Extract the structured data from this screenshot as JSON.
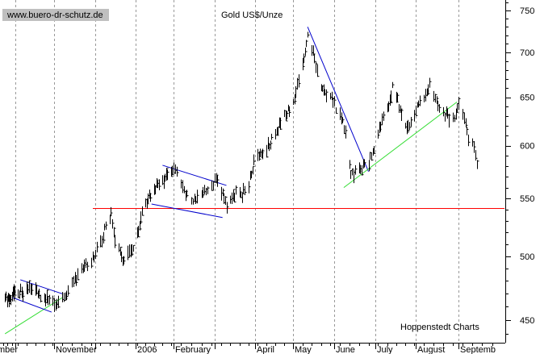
{
  "chart_data": {
    "type": "ohlc",
    "title": "Gold US$/Unze",
    "watermark": "www.buero-dr-schutz.de",
    "source": "Hoppenstedt Charts",
    "y_scale": "log",
    "ylim": [
      440,
      760
    ],
    "y_ticks": [
      450,
      500,
      550,
      600,
      650,
      700,
      750
    ],
    "x_labels": [
      "mber",
      "November",
      "2006",
      "February",
      "April",
      "May",
      "June",
      "July",
      "August",
      "Septemb"
    ],
    "grid": true,
    "colors": {
      "price": "#000000",
      "horizontal_line": "#ff0000",
      "support_line": "#33dd33",
      "channel_line": "#0000cc",
      "grid": "#999999",
      "watermark_bg": "#bfbfbf"
    },
    "horizontal_line": 541,
    "trend_lines": [
      {
        "kind": "support",
        "from": {
          "date": "2005-09-15",
          "price": 440
        },
        "to": {
          "date": "2005-11-07",
          "price": 467
        }
      },
      {
        "kind": "channel",
        "from": {
          "date": "2005-10-05",
          "price": 481
        },
        "to": {
          "date": "2005-11-07",
          "price": 470
        }
      },
      {
        "kind": "channel",
        "from": {
          "date": "2005-09-27",
          "price": 467
        },
        "to": {
          "date": "2005-10-30",
          "price": 456
        }
      },
      {
        "kind": "channel",
        "from": {
          "date": "2006-01-23",
          "price": 581
        },
        "to": {
          "date": "2006-03-10",
          "price": 562
        }
      },
      {
        "kind": "channel",
        "from": {
          "date": "2006-01-14",
          "price": 545
        },
        "to": {
          "date": "2006-03-07",
          "price": 533
        }
      },
      {
        "kind": "resistance",
        "from": {
          "date": "2006-05-12",
          "price": 730
        },
        "to": {
          "date": "2006-06-26",
          "price": 575
        }
      },
      {
        "kind": "support",
        "from": {
          "date": "2006-06-08",
          "price": 560
        },
        "to": {
          "date": "2006-08-31",
          "price": 645
        }
      }
    ],
    "anchors": [
      [
        "2005-09-15",
        468
      ],
      [
        "2005-09-22",
        465
      ],
      [
        "2005-09-30",
        473
      ],
      [
        "2005-10-07",
        472
      ],
      [
        "2005-10-14",
        476
      ],
      [
        "2005-10-21",
        470
      ],
      [
        "2005-10-28",
        464
      ],
      [
        "2005-11-02",
        463
      ],
      [
        "2005-11-08",
        467
      ],
      [
        "2005-11-14",
        478
      ],
      [
        "2005-11-21",
        490
      ],
      [
        "2005-11-28",
        496
      ],
      [
        "2005-12-05",
        510
      ],
      [
        "2005-12-09",
        528
      ],
      [
        "2005-12-13",
        537
      ],
      [
        "2005-12-16",
        515
      ],
      [
        "2005-12-20",
        502
      ],
      [
        "2005-12-23",
        497
      ],
      [
        "2005-12-28",
        503
      ],
      [
        "2006-01-03",
        520
      ],
      [
        "2006-01-06",
        537
      ],
      [
        "2006-01-12",
        550
      ],
      [
        "2006-01-18",
        560
      ],
      [
        "2006-01-25",
        568
      ],
      [
        "2006-02-01",
        575
      ],
      [
        "2006-02-03",
        573
      ],
      [
        "2006-02-07",
        560
      ],
      [
        "2006-02-10",
        554
      ],
      [
        "2006-02-14",
        548
      ],
      [
        "2006-02-17",
        552
      ],
      [
        "2006-02-22",
        558
      ],
      [
        "2006-02-27",
        563
      ],
      [
        "2006-03-02",
        566
      ],
      [
        "2006-03-06",
        557
      ],
      [
        "2006-03-10",
        545
      ],
      [
        "2006-03-14",
        551
      ],
      [
        "2006-03-17",
        557
      ],
      [
        "2006-03-22",
        555
      ],
      [
        "2006-03-27",
        563
      ],
      [
        "2006-03-31",
        583
      ],
      [
        "2006-04-05",
        591
      ],
      [
        "2006-04-10",
        598
      ],
      [
        "2006-04-14",
        605
      ],
      [
        "2006-04-20",
        622
      ],
      [
        "2006-04-26",
        633
      ],
      [
        "2006-05-02",
        650
      ],
      [
        "2006-05-05",
        670
      ],
      [
        "2006-05-09",
        690
      ],
      [
        "2006-05-12",
        718
      ],
      [
        "2006-05-15",
        705
      ],
      [
        "2006-05-18",
        688
      ],
      [
        "2006-05-22",
        660
      ],
      [
        "2006-05-25",
        655
      ],
      [
        "2006-05-30",
        650
      ],
      [
        "2006-06-02",
        640
      ],
      [
        "2006-06-06",
        630
      ],
      [
        "2006-06-09",
        615
      ],
      [
        "2006-06-12",
        582
      ],
      [
        "2006-06-14",
        572
      ],
      [
        "2006-06-19",
        576
      ],
      [
        "2006-06-22",
        582
      ],
      [
        "2006-06-26",
        585
      ],
      [
        "2006-06-29",
        593
      ],
      [
        "2006-07-03",
        613
      ],
      [
        "2006-07-07",
        628
      ],
      [
        "2006-07-11",
        640
      ],
      [
        "2006-07-14",
        662
      ],
      [
        "2006-07-18",
        648
      ],
      [
        "2006-07-21",
        630
      ],
      [
        "2006-07-26",
        620
      ],
      [
        "2006-07-31",
        633
      ],
      [
        "2006-08-03",
        645
      ],
      [
        "2006-08-08",
        652
      ],
      [
        "2006-08-11",
        660
      ],
      [
        "2006-08-15",
        650
      ],
      [
        "2006-08-18",
        638
      ],
      [
        "2006-08-23",
        632
      ],
      [
        "2006-08-25",
        628
      ],
      [
        "2006-08-29",
        628
      ],
      [
        "2006-09-01",
        640
      ],
      [
        "2006-09-05",
        628
      ],
      [
        "2006-09-08",
        604
      ],
      [
        "2006-09-12",
        598
      ],
      [
        "2006-09-14",
        582
      ]
    ]
  }
}
